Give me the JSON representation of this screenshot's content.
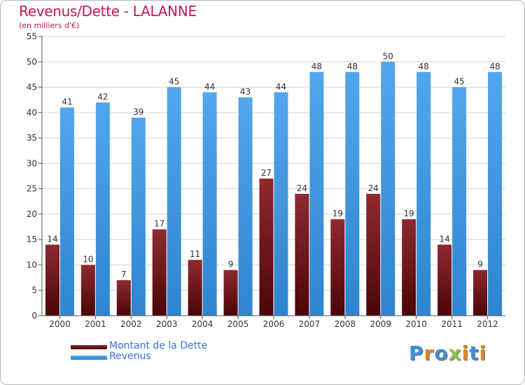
{
  "chart_data": {
    "type": "bar",
    "title": "Revenus/Dette - LALANNE",
    "subtitle": "(en milliers d'€)",
    "xlabel": "",
    "ylabel": "",
    "ylim": [
      0,
      55
    ],
    "yticks": [
      0,
      5,
      10,
      15,
      20,
      25,
      30,
      35,
      40,
      45,
      50,
      55
    ],
    "grid": true,
    "categories": [
      "2000",
      "2001",
      "2002",
      "2003",
      "2004",
      "2005",
      "2006",
      "2007",
      "2008",
      "2009",
      "2010",
      "2011",
      "2012"
    ],
    "series": [
      {
        "name": "Montant de la Dette",
        "color": "#6b0f12",
        "values": [
          14,
          10,
          7,
          17,
          11,
          9,
          27,
          24,
          19,
          24,
          19,
          14,
          9
        ]
      },
      {
        "name": "Revenus",
        "color": "#3f95dd",
        "values": [
          41,
          42,
          39,
          45,
          44,
          43,
          44,
          48,
          48,
          50,
          48,
          45,
          48
        ]
      }
    ],
    "legend": "bottom-left"
  },
  "legend": {
    "debt_label": "Montant de la Dette",
    "revenue_label": "Revenus"
  },
  "logo_text": "Proxiti",
  "colors": {
    "title": "#c2185b",
    "debt": "#6b0f12",
    "revenue": "#3f95dd",
    "legend_text": "#3b6fe0"
  }
}
